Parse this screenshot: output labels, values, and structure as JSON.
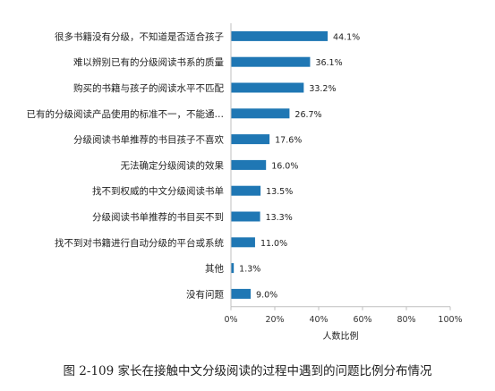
{
  "chart_data": {
    "type": "bar",
    "orientation": "horizontal",
    "categories": [
      "很多书籍没有分级，不知道是否适合孩子",
      "难以辨别已有的分级阅读书系的质量",
      "购买的书籍与孩子的阅读水平不匹配",
      "已有的分级阅读产品使用的标准不一，不能通…",
      "分级阅读书单推荐的书目孩子不喜欢",
      "无法确定分级阅读的效果",
      "找不到权威的中文分级阅读书单",
      "分级阅读书单推荐的书目买不到",
      "找不到对书籍进行自动分级的平台或系统",
      "其他",
      "没有问题"
    ],
    "values": [
      44.1,
      36.1,
      33.2,
      26.7,
      17.6,
      16.0,
      13.5,
      13.3,
      11.0,
      1.3,
      9.0
    ],
    "value_labels": [
      "44.1%",
      "36.1%",
      "33.2%",
      "26.7%",
      "17.6%",
      "16.0%",
      "13.5%",
      "13.3%",
      "11.0%",
      "1.3%",
      "9.0%"
    ],
    "xticks": [
      "0%",
      "20%",
      "40%",
      "60%",
      "80%",
      "100%"
    ],
    "xlim": [
      0,
      100
    ],
    "xlabel": "人数比例",
    "grid": false,
    "bar_color": "#1f77b4"
  },
  "caption": "图 2-109  家长在接触中文分级阅读的过程中遇到的问题比例分布情况"
}
